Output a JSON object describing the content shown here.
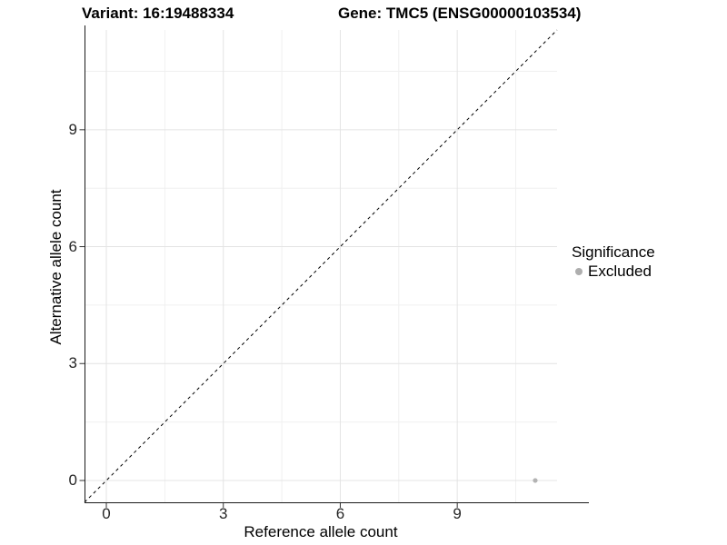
{
  "chart_data": {
    "type": "scatter",
    "titles": {
      "variant": "Variant: 16:19488334",
      "gene": "Gene: TMC5 (ENSG00000103534)"
    },
    "xlabel": "Reference allele count",
    "ylabel": "Alternative allele count",
    "points": [
      {
        "x": 11,
        "y": 0,
        "series": "Excluded"
      }
    ],
    "identity_line": {
      "slope": 1,
      "intercept": 0,
      "style": "dashed",
      "color": "#000000"
    },
    "axes": {
      "xlim": [
        -0.56,
        11.56
      ],
      "ylim": [
        -0.56,
        11.56
      ],
      "x_ticks": [
        0,
        3,
        6,
        9
      ],
      "y_ticks": [
        0,
        3,
        6,
        9
      ],
      "x_minor_ticks": [
        1.5,
        4.5,
        7.5,
        10.5
      ],
      "y_minor_ticks": [
        1.5,
        4.5,
        7.5,
        10.5
      ]
    },
    "grid": true,
    "legend": {
      "title": "Significance",
      "position": "right",
      "entries": [
        {
          "label": "Excluded",
          "color": "#aeaeae"
        }
      ]
    },
    "style": {
      "point_color": "#b3b3b3",
      "grid_major_color": "#e4e4e4",
      "grid_minor_color": "#f0f0f0",
      "axis_color": "#1a1a1a",
      "tick_color": "#333333"
    }
  }
}
